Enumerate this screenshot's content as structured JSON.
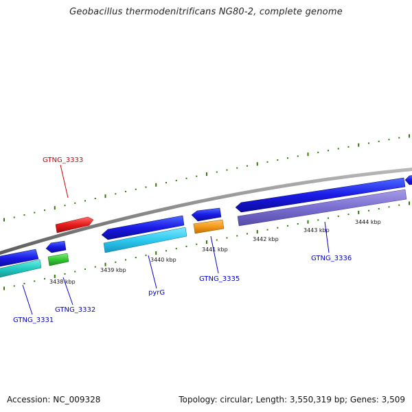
{
  "title": "Geobacillus thermodenitrificans NG80-2, complete genome",
  "footer": {
    "accession": "Accession: NC_009328",
    "topology": "Topology: circular; Length: 3,550,319 bp; Genes: 3,509"
  },
  "colors": {
    "backbone": "#888888",
    "tick": "#2a7a00",
    "gene_label_blue": "#0000cc",
    "gene_label_red": "#cc0000"
  },
  "scale_labels": [
    "3438 kbp",
    "3439 kbp",
    "3440 kbp",
    "3441 kbp",
    "3442 kbp",
    "3443 kbp",
    "3444 kbp"
  ],
  "gene_labels": {
    "g3333": "GTNG_3333",
    "g3331": "GTNG_3331",
    "g3332": "GTNG_3332",
    "pyrG": "pyrG",
    "g3335": "GTNG_3335",
    "g3336": "GTNG_3336"
  }
}
